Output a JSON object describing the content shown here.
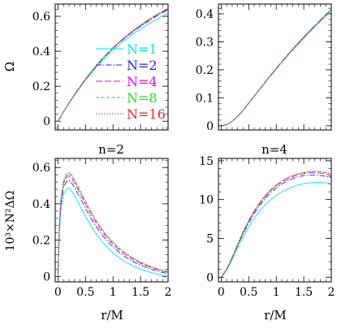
{
  "figure": {
    "row_labels": [
      "n=2",
      "n=4"
    ],
    "y_axis_labels": [
      "Ω",
      "10³×N²ΔΩ"
    ],
    "x_axis_label": "r/M"
  },
  "chart_data": [
    {
      "type": "line",
      "title": "",
      "xlabel": "",
      "ylabel": "Ω",
      "xlim": [
        -0.05,
        2.0
      ],
      "ylim": [
        -0.05,
        0.67
      ],
      "xticks": [
        0,
        0.5,
        1,
        1.5,
        2
      ],
      "xtick_labels": [],
      "yticks": [
        0,
        0.2,
        0.4,
        0.6
      ],
      "ytick_labels": [
        "0",
        "0.2",
        "0.4",
        "0.6"
      ],
      "grid": false,
      "legend_position": "right",
      "x": [
        0,
        0.1,
        0.2,
        0.3,
        0.4,
        0.5,
        0.6,
        0.7,
        0.8,
        0.9,
        1.0,
        1.1,
        1.2,
        1.3,
        1.4,
        1.5,
        1.6,
        1.7,
        1.8,
        1.9,
        2.0
      ],
      "series": [
        {
          "name": "N=1",
          "color": "#00e5ee",
          "dash": "solid",
          "values": [
            0,
            0.052,
            0.101,
            0.148,
            0.192,
            0.234,
            0.273,
            0.31,
            0.344,
            0.376,
            0.406,
            0.434,
            0.46,
            0.484,
            0.507,
            0.528,
            0.548,
            0.567,
            0.585,
            0.602,
            0.618
          ]
        },
        {
          "name": "N=2",
          "color": "#2222dd",
          "dash": "dashdot",
          "values": [
            0,
            0.053,
            0.103,
            0.151,
            0.196,
            0.239,
            0.279,
            0.317,
            0.352,
            0.385,
            0.416,
            0.445,
            0.472,
            0.497,
            0.521,
            0.543,
            0.564,
            0.584,
            0.603,
            0.621,
            0.638
          ]
        },
        {
          "name": "N=4",
          "color": "#ee00ee",
          "dash": "longdash",
          "values": [
            0,
            0.053,
            0.104,
            0.152,
            0.197,
            0.24,
            0.281,
            0.319,
            0.355,
            0.388,
            0.419,
            0.448,
            0.476,
            0.501,
            0.525,
            0.548,
            0.569,
            0.589,
            0.608,
            0.626,
            0.643
          ]
        },
        {
          "name": "N=8",
          "color": "#22dd22",
          "dash": "shortdash",
          "values": [
            0,
            0.053,
            0.104,
            0.152,
            0.198,
            0.241,
            0.282,
            0.32,
            0.356,
            0.389,
            0.42,
            0.449,
            0.477,
            0.503,
            0.527,
            0.55,
            0.571,
            0.591,
            0.61,
            0.628,
            0.645
          ]
        },
        {
          "name": "N=16",
          "color": "#ee2222",
          "dash": "dotted",
          "values": [
            0,
            0.053,
            0.104,
            0.152,
            0.198,
            0.241,
            0.282,
            0.32,
            0.356,
            0.39,
            0.421,
            0.45,
            0.477,
            0.503,
            0.527,
            0.55,
            0.572,
            0.592,
            0.611,
            0.629,
            0.646
          ]
        }
      ]
    },
    {
      "type": "line",
      "title": "",
      "xlabel": "",
      "ylabel": "",
      "xlim": [
        -0.05,
        2.0
      ],
      "ylim": [
        -0.015,
        0.435
      ],
      "xticks": [
        0,
        0.5,
        1,
        1.5,
        2
      ],
      "xtick_labels": [],
      "yticks": [
        0,
        0.1,
        0.2,
        0.3,
        0.4
      ],
      "ytick_labels": [
        "0",
        "0.1",
        "0.2",
        "0.3",
        "0.4"
      ],
      "grid": false,
      "x": [
        0,
        0.1,
        0.2,
        0.3,
        0.4,
        0.5,
        0.6,
        0.7,
        0.8,
        0.9,
        1.0,
        1.1,
        1.2,
        1.3,
        1.4,
        1.5,
        1.6,
        1.7,
        1.8,
        1.9,
        2.0
      ],
      "series": [
        {
          "color": "#00e5ee",
          "dash": "solid",
          "values": [
            0,
            0.004,
            0.016,
            0.034,
            0.056,
            0.08,
            0.105,
            0.13,
            0.155,
            0.179,
            0.203,
            0.226,
            0.249,
            0.271,
            0.292,
            0.313,
            0.333,
            0.353,
            0.372,
            0.391,
            0.409
          ]
        },
        {
          "color": "#2222dd",
          "dash": "dashdot",
          "values": [
            0,
            0.004,
            0.016,
            0.034,
            0.056,
            0.081,
            0.106,
            0.131,
            0.156,
            0.181,
            0.205,
            0.228,
            0.251,
            0.273,
            0.295,
            0.316,
            0.337,
            0.357,
            0.376,
            0.395,
            0.414
          ]
        },
        {
          "color": "#ee00ee",
          "dash": "longdash",
          "values": [
            0,
            0.004,
            0.016,
            0.034,
            0.056,
            0.081,
            0.106,
            0.131,
            0.157,
            0.181,
            0.205,
            0.229,
            0.252,
            0.274,
            0.296,
            0.317,
            0.338,
            0.358,
            0.377,
            0.396,
            0.415
          ]
        },
        {
          "color": "#22dd22",
          "dash": "shortdash",
          "values": [
            0,
            0.004,
            0.016,
            0.034,
            0.056,
            0.081,
            0.106,
            0.131,
            0.157,
            0.181,
            0.206,
            0.229,
            0.252,
            0.274,
            0.296,
            0.318,
            0.338,
            0.358,
            0.378,
            0.397,
            0.416
          ]
        },
        {
          "color": "#ee2222",
          "dash": "dotted",
          "values": [
            0,
            0.004,
            0.016,
            0.034,
            0.056,
            0.081,
            0.106,
            0.131,
            0.157,
            0.182,
            0.206,
            0.229,
            0.252,
            0.275,
            0.297,
            0.318,
            0.339,
            0.359,
            0.378,
            0.397,
            0.416
          ]
        }
      ]
    },
    {
      "type": "line",
      "title": "",
      "xlabel": "r/M",
      "ylabel": "10³×N²ΔΩ",
      "xlim": [
        -0.05,
        2.0
      ],
      "ylim": [
        -0.03,
        0.65
      ],
      "xticks": [
        0,
        0.5,
        1,
        1.5,
        2
      ],
      "xtick_labels": [
        "0",
        "0.5",
        "1",
        "1.5",
        "2"
      ],
      "yticks": [
        0,
        0.2,
        0.4,
        0.6
      ],
      "ytick_labels": [
        "0",
        "0.2",
        "0.4",
        "0.6"
      ],
      "grid": false,
      "x": [
        0,
        0.025,
        0.05,
        0.1,
        0.15,
        0.2,
        0.25,
        0.3,
        0.4,
        0.5,
        0.6,
        0.7,
        0.8,
        0.9,
        1.0,
        1.1,
        1.2,
        1.3,
        1.4,
        1.5,
        1.6,
        1.7,
        1.8,
        1.9,
        2.0
      ],
      "series": [
        {
          "color": "#00e5ee",
          "dash": "solid",
          "values": [
            0.0,
            0.24,
            0.36,
            0.45,
            0.48,
            0.49,
            0.47,
            0.445,
            0.39,
            0.33,
            0.278,
            0.232,
            0.192,
            0.158,
            0.13,
            0.106,
            0.085,
            0.068,
            0.053,
            0.04,
            0.03,
            0.021,
            0.013,
            0.006,
            0.0
          ]
        },
        {
          "color": "#2222dd",
          "dash": "dashdot",
          "values": [
            0.0,
            0.26,
            0.39,
            0.49,
            0.52,
            0.53,
            0.515,
            0.49,
            0.435,
            0.375,
            0.32,
            0.272,
            0.229,
            0.193,
            0.162,
            0.135,
            0.112,
            0.093,
            0.076,
            0.062,
            0.05,
            0.039,
            0.03,
            0.022,
            0.015
          ]
        },
        {
          "color": "#ee00ee",
          "dash": "longdash",
          "values": [
            0.0,
            0.27,
            0.4,
            0.51,
            0.545,
            0.555,
            0.54,
            0.515,
            0.458,
            0.397,
            0.341,
            0.291,
            0.247,
            0.209,
            0.177,
            0.149,
            0.125,
            0.105,
            0.087,
            0.072,
            0.059,
            0.048,
            0.038,
            0.029,
            0.022
          ]
        },
        {
          "color": "#22dd22",
          "dash": "shortdash",
          "values": [
            0.0,
            0.275,
            0.41,
            0.52,
            0.555,
            0.568,
            0.553,
            0.527,
            0.47,
            0.408,
            0.352,
            0.301,
            0.257,
            0.218,
            0.185,
            0.157,
            0.132,
            0.111,
            0.093,
            0.077,
            0.064,
            0.052,
            0.042,
            0.033,
            0.025
          ]
        },
        {
          "color": "#ee2222",
          "dash": "dotted",
          "values": [
            0.0,
            0.28,
            0.415,
            0.525,
            0.562,
            0.575,
            0.56,
            0.534,
            0.476,
            0.414,
            0.357,
            0.306,
            0.261,
            0.222,
            0.189,
            0.16,
            0.135,
            0.114,
            0.095,
            0.079,
            0.065,
            0.053,
            0.043,
            0.034,
            0.026
          ]
        }
      ]
    },
    {
      "type": "line",
      "title": "",
      "xlabel": "r/M",
      "ylabel": "",
      "xlim": [
        -0.05,
        2.0
      ],
      "ylim": [
        -0.6,
        15.3
      ],
      "xticks": [
        0,
        0.5,
        1,
        1.5,
        2
      ],
      "xtick_labels": [
        "0",
        "0.5",
        "1",
        "1.5",
        "2"
      ],
      "yticks": [
        0,
        5,
        10,
        15
      ],
      "ytick_labels": [
        "0",
        "5",
        "10",
        "15"
      ],
      "grid": false,
      "x": [
        0,
        0.1,
        0.2,
        0.3,
        0.4,
        0.5,
        0.6,
        0.7,
        0.8,
        0.9,
        1.0,
        1.1,
        1.2,
        1.3,
        1.4,
        1.5,
        1.6,
        1.7,
        1.8,
        1.9,
        2.0
      ],
      "series": [
        {
          "color": "#00e5ee",
          "dash": "solid",
          "values": [
            0.0,
            0.9,
            2.3,
            3.8,
            5.2,
            6.5,
            7.6,
            8.55,
            9.35,
            10.0,
            10.55,
            11.0,
            11.35,
            11.65,
            11.9,
            12.05,
            12.15,
            12.2,
            12.2,
            12.15,
            12.05
          ]
        },
        {
          "color": "#2222dd",
          "dash": "dashdot",
          "values": [
            0.0,
            1.0,
            2.5,
            4.1,
            5.6,
            7.0,
            8.2,
            9.25,
            10.15,
            10.9,
            11.5,
            12.0,
            12.4,
            12.7,
            12.95,
            13.1,
            13.15,
            13.15,
            13.1,
            13.0,
            12.85
          ]
        },
        {
          "color": "#ee00ee",
          "dash": "longdash",
          "values": [
            0.0,
            1.0,
            2.55,
            4.2,
            5.75,
            7.2,
            8.45,
            9.5,
            10.4,
            11.15,
            11.75,
            12.25,
            12.65,
            12.95,
            13.2,
            13.35,
            13.45,
            13.45,
            13.4,
            13.3,
            13.15
          ]
        },
        {
          "color": "#22dd22",
          "dash": "shortdash",
          "values": [
            0.0,
            1.05,
            2.6,
            4.25,
            5.85,
            7.3,
            8.55,
            9.6,
            10.5,
            11.25,
            11.85,
            12.35,
            12.75,
            13.05,
            13.3,
            13.45,
            13.55,
            13.6,
            13.55,
            13.45,
            13.3
          ]
        },
        {
          "color": "#ee2222",
          "dash": "dotted",
          "values": [
            0.0,
            1.05,
            2.6,
            4.3,
            5.9,
            7.35,
            8.6,
            9.65,
            10.55,
            11.3,
            11.9,
            12.4,
            12.8,
            13.1,
            13.35,
            13.5,
            13.6,
            13.65,
            13.6,
            13.5,
            13.35
          ]
        }
      ]
    }
  ]
}
